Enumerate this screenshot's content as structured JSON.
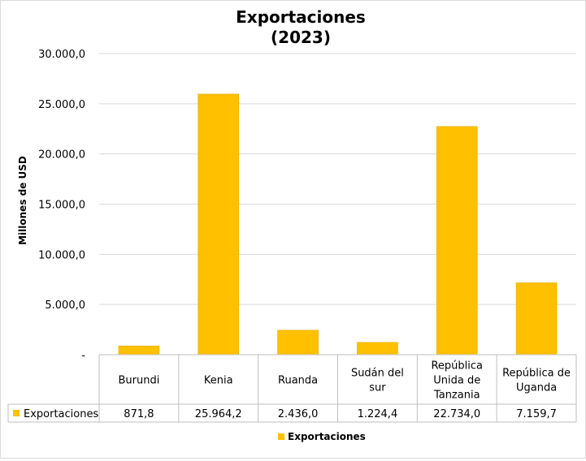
{
  "chart_data": {
    "type": "bar",
    "title": "Exportaciones",
    "subtitle": "(2023)",
    "ylabel": "Millones de USD",
    "xlabel": "",
    "ylim": [
      0,
      30000
    ],
    "yticks": [
      "-",
      "5.000,0",
      "10.000,0",
      "15.000,0",
      "20.000,0",
      "25.000,0",
      "30.000,0"
    ],
    "grid": true,
    "legend_position": "bottom",
    "bar_color": "#FFC000",
    "categories": [
      [
        "Burundi"
      ],
      [
        "Kenia"
      ],
      [
        "Ruanda"
      ],
      [
        "Sudán del",
        "sur"
      ],
      [
        "República",
        "Unida de",
        "Tanzania"
      ],
      [
        "República de",
        "Uganda"
      ]
    ],
    "series": [
      {
        "name": "Exportaciones",
        "values": [
          871.8,
          25964.2,
          2436.0,
          1224.4,
          22734.0,
          7159.7
        ],
        "labels": [
          "871,8",
          "25.964,2",
          "2.436,0",
          "1.224,4",
          "22.734,0",
          "7.159,7"
        ]
      }
    ],
    "data_table": true
  }
}
